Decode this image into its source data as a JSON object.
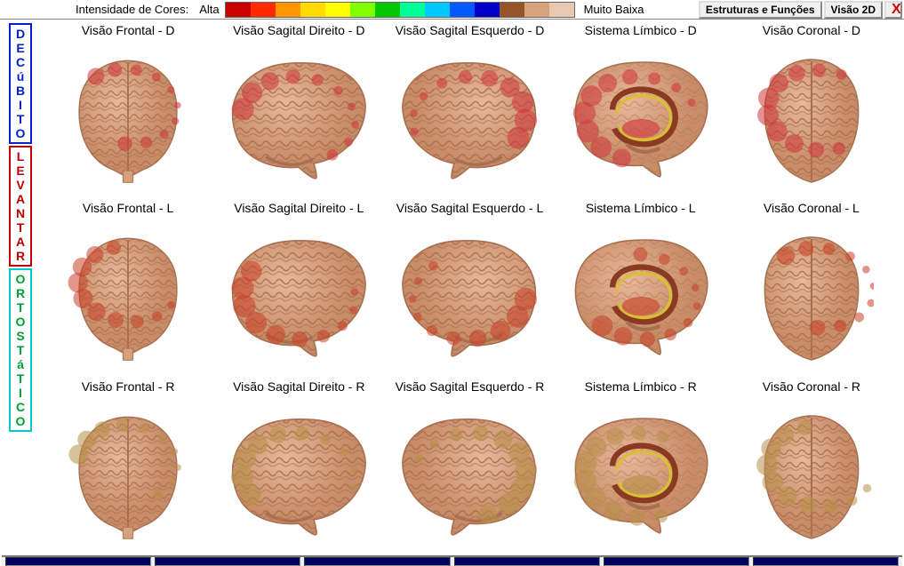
{
  "topbar": {
    "intensity_label": "Intensidade de Cores:",
    "alta_label": "Alta",
    "muito_baixa_label": "Muito Baixa",
    "spectrum_colors": [
      "#c80000",
      "#ff2a00",
      "#ff9500",
      "#ffdb00",
      "#ffff00",
      "#7fff00",
      "#00c800",
      "#00ff96",
      "#00c8ff",
      "#005aff",
      "#0000c8",
      "#965529",
      "#d8a27c",
      "#e8c8b0"
    ],
    "btn_estruturas": "Estruturas e Funções",
    "btn_visao2d": "Visão 2D",
    "btn_close": "X"
  },
  "sidebar": {
    "sections": [
      {
        "text": "DECúBITO",
        "color": "#0020d0",
        "border": "#0020d0"
      },
      {
        "text": "LEVANTAR",
        "color": "#c00000",
        "border": "#c00000"
      },
      {
        "text": "ORTOSTáTICO",
        "color": "#00a030",
        "border": "#00c8d0"
      }
    ]
  },
  "grid": {
    "columns": [
      "Visão Frontal",
      "Visão Sagital Direito",
      "Visão Sagital Esquerdo",
      "Sistema Límbico",
      "Visão Coronal"
    ],
    "rows": [
      {
        "suffix": "D",
        "tint": "#d0353a"
      },
      {
        "suffix": "L",
        "tint": "#c84028"
      },
      {
        "suffix": "R",
        "tint": "#b89048"
      }
    ],
    "base_colors": {
      "cortex_light": "#e8b89a",
      "cortex_mid": "#d9a07c",
      "cortex_dark": "#c88c68",
      "sulcus": "#a87050"
    },
    "view_types": [
      "frontal",
      "sagittal-right",
      "sagittal-left",
      "limbic",
      "coronal"
    ]
  },
  "bottombar": {
    "segments": 6,
    "color": "#000060"
  }
}
